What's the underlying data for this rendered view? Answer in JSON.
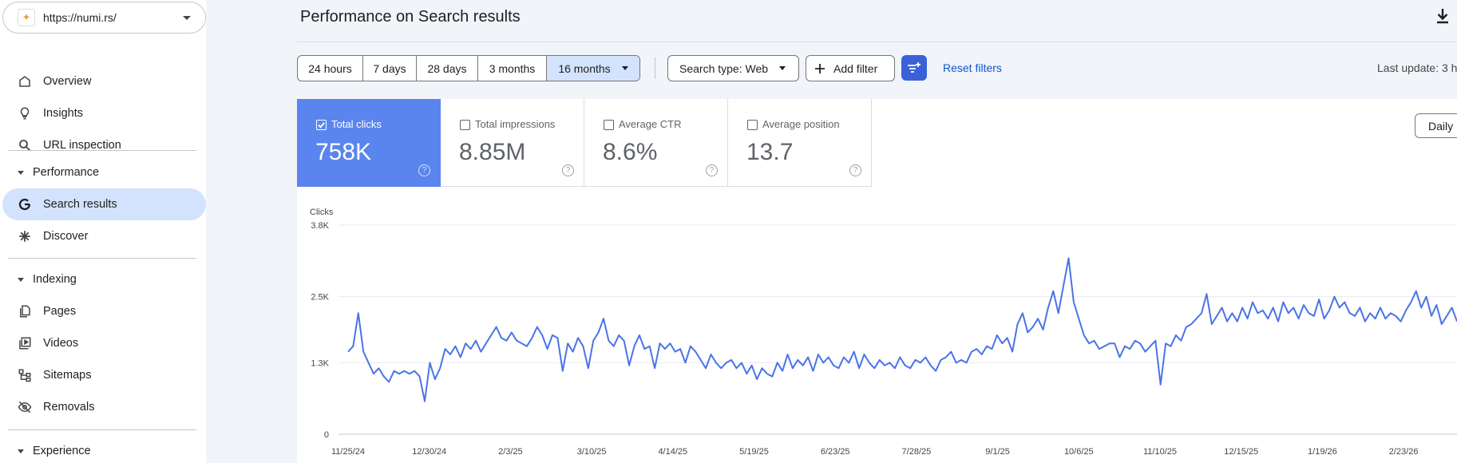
{
  "property": {
    "url": "https://numi.rs/"
  },
  "sidebar": {
    "items": [
      {
        "label": "Overview",
        "icon": "home-icon"
      },
      {
        "label": "Insights",
        "icon": "lightbulb-icon"
      },
      {
        "label": "URL inspection",
        "icon": "search-icon"
      },
      {
        "label": "Search results",
        "icon": "google-g-icon",
        "active": true
      },
      {
        "label": "Discover",
        "icon": "asterisk-icon"
      },
      {
        "label": "Pages",
        "icon": "pages-icon"
      },
      {
        "label": "Videos",
        "icon": "video-icon"
      },
      {
        "label": "Sitemaps",
        "icon": "sitemap-icon"
      },
      {
        "label": "Removals",
        "icon": "eye-off-icon"
      }
    ],
    "sections": {
      "performance": "Performance",
      "indexing": "Indexing",
      "experience": "Experience"
    }
  },
  "header": {
    "title": "Performance on Search results"
  },
  "toolbar": {
    "ranges": [
      "24 hours",
      "7 days",
      "28 days",
      "3 months",
      "16 months"
    ],
    "selected_range": "16 months",
    "search_type": "Search type: Web",
    "add_filter": "Add filter",
    "reset": "Reset filters",
    "last_update": "Last update: 3 h"
  },
  "metrics": [
    {
      "name": "Total clicks",
      "value": "758K",
      "selected": true
    },
    {
      "name": "Total impressions",
      "value": "8.85M",
      "selected": false
    },
    {
      "name": "Average CTR",
      "value": "8.6%",
      "selected": false
    },
    {
      "name": "Average position",
      "value": "13.7",
      "selected": false
    }
  ],
  "granularity": "Daily",
  "colors": {
    "accent": "#5a85ee",
    "line": "#4a74e6",
    "active_nav": "#d3e3fd",
    "filter_button": "#3b61d9"
  },
  "chart_data": {
    "type": "line",
    "ylabel": "Clicks",
    "y_ticks": [
      "0",
      "1.3K",
      "2.5K",
      "3.8K"
    ],
    "ylim": [
      0,
      3800
    ],
    "x_ticks": [
      "11/25/24",
      "12/30/24",
      "2/3/25",
      "3/10/25",
      "4/14/25",
      "5/19/25",
      "6/23/25",
      "7/28/25",
      "9/1/25",
      "10/6/25",
      "11/10/25",
      "12/15/25",
      "1/19/26",
      "2/23/26"
    ],
    "grid": true,
    "series": [
      {
        "name": "Clicks",
        "values": [
          1500,
          1600,
          2200,
          1500,
          1300,
          1100,
          1200,
          1050,
          950,
          1150,
          1100,
          1150,
          1100,
          1150,
          1050,
          600,
          1300,
          1000,
          1200,
          1550,
          1450,
          1600,
          1400,
          1650,
          1550,
          1700,
          1500,
          1650,
          1800,
          1950,
          1750,
          1700,
          1850,
          1700,
          1650,
          1600,
          1750,
          1950,
          1800,
          1550,
          1800,
          1750,
          1150,
          1650,
          1500,
          1750,
          1600,
          1200,
          1700,
          1850,
          2100,
          1700,
          1600,
          1800,
          1700,
          1250,
          1600,
          1800,
          1550,
          1600,
          1200,
          1650,
          1550,
          1650,
          1500,
          1550,
          1300,
          1600,
          1500,
          1350,
          1200,
          1450,
          1300,
          1200,
          1300,
          1350,
          1200,
          1300,
          1100,
          1250,
          1000,
          1200,
          1100,
          1050,
          1300,
          1150,
          1450,
          1200,
          1350,
          1250,
          1400,
          1150,
          1450,
          1300,
          1400,
          1250,
          1200,
          1400,
          1300,
          1500,
          1200,
          1450,
          1300,
          1200,
          1350,
          1250,
          1300,
          1200,
          1400,
          1250,
          1200,
          1350,
          1300,
          1400,
          1250,
          1150,
          1350,
          1400,
          1500,
          1300,
          1350,
          1300,
          1500,
          1550,
          1450,
          1600,
          1550,
          1800,
          1650,
          1750,
          1500,
          2000,
          2200,
          1850,
          1950,
          2100,
          1900,
          2300,
          2600,
          2200,
          2700,
          3200,
          2400,
          2100,
          1800,
          1650,
          1700,
          1550,
          1600,
          1650,
          1650,
          1400,
          1600,
          1550,
          1700,
          1650,
          1500,
          1600,
          1700,
          900,
          1650,
          1600,
          1800,
          1700,
          1950,
          2000,
          2100,
          2200,
          2550,
          2000,
          2150,
          2300,
          2050,
          2200,
          2050,
          2300,
          2100,
          2400,
          2200,
          2250,
          2100,
          2300,
          2050,
          2400,
          2200,
          2300,
          2100,
          2350,
          2200,
          2150,
          2450,
          2100,
          2250,
          2500,
          2300,
          2400,
          2200,
          2150,
          2300,
          2050,
          2200,
          2100,
          2300,
          2100,
          2200,
          2150,
          2050,
          2250,
          2400,
          2600,
          2300,
          2500,
          2150,
          2350,
          2000,
          2150,
          2300,
          2050
        ]
      }
    ]
  }
}
